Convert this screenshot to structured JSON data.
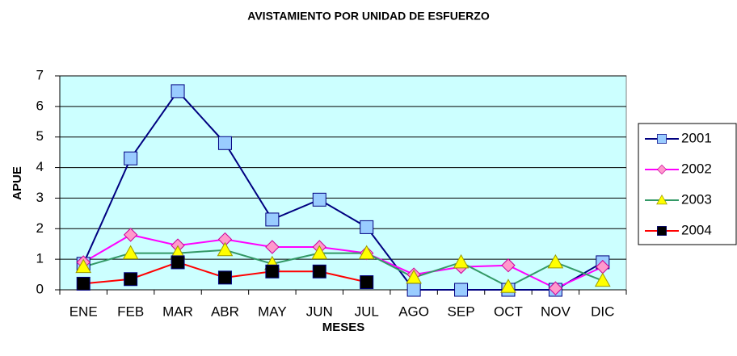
{
  "chart_data": {
    "type": "line",
    "title": "AVISTAMIENTO POR UNIDAD DE ESFUERZO",
    "x_label": "MESES",
    "y_label": "APUE",
    "categories": [
      "ENE",
      "FEB",
      "MAR",
      "ABR",
      "MAY",
      "JUN",
      "JUL",
      "AGO",
      "SEP",
      "OCT",
      "NOV",
      "DIC"
    ],
    "series": [
      {
        "name": "2001",
        "color": "#000080",
        "marker_color": "#99ccff",
        "marker": "square",
        "values": [
          0.85,
          4.3,
          6.5,
          4.8,
          2.3,
          2.95,
          2.05,
          0,
          0,
          0,
          0,
          0.9
        ]
      },
      {
        "name": "2002",
        "color": "#ff00ff",
        "marker_color": "#ff99cc",
        "marker": "diamond",
        "values": [
          0.9,
          1.8,
          1.45,
          1.65,
          1.4,
          1.4,
          1.2,
          0.5,
          0.75,
          0.8,
          0.05,
          0.75
        ]
      },
      {
        "name": "2003",
        "color": "#339966",
        "marker_color": "#ffff00",
        "marker": "triangle",
        "values": [
          0.75,
          1.2,
          1.2,
          1.3,
          0.85,
          1.2,
          1.2,
          0.4,
          0.9,
          0.1,
          0.9,
          0.3
        ]
      },
      {
        "name": "2004",
        "color": "#ff0000",
        "marker_color": "#000000",
        "marker": "square",
        "values": [
          0.2,
          0.35,
          0.9,
          0.4,
          0.6,
          0.6,
          0.25,
          null,
          null,
          null,
          null,
          null
        ]
      }
    ],
    "ylim": [
      0,
      7
    ],
    "yticks": [
      0,
      1,
      2,
      3,
      4,
      5,
      6,
      7
    ],
    "grid": true,
    "legend": "right"
  }
}
